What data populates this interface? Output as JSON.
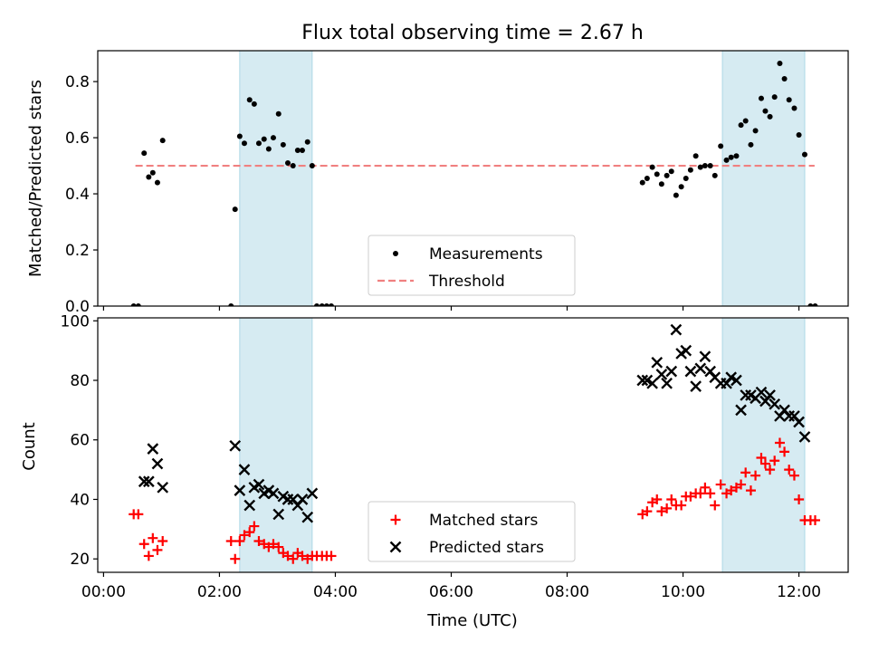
{
  "figure": {
    "title": "Flux total observing time = 2.67 h"
  },
  "chart_data": [
    {
      "type": "scatter",
      "ylabel": "Matched/Predicted stars",
      "xlim": [
        -0.1,
        12.85
      ],
      "ylim": [
        0,
        0.91
      ],
      "yticks": [
        "0.0",
        "0.2",
        "0.4",
        "0.6",
        "0.8"
      ],
      "ytick_values": [
        0,
        0.2,
        0.4,
        0.6,
        0.8
      ],
      "xtick_values": [
        0,
        2,
        4,
        6,
        8,
        10,
        12
      ],
      "shaded_intervals": [
        [
          2.35,
          3.6
        ],
        [
          10.68,
          12.1
        ]
      ],
      "threshold": {
        "x_range": [
          0.55,
          12.27
        ],
        "value": 0.5,
        "color": "#f08080"
      },
      "legend": {
        "position": "lower-center",
        "entries": [
          "Measurements",
          "Threshold"
        ]
      },
      "series": [
        {
          "name": "Measurements",
          "marker": "dot",
          "color": "#000000",
          "points": [
            [
              0.52,
              0.0
            ],
            [
              0.6,
              0.0
            ],
            [
              0.7,
              0.545
            ],
            [
              0.78,
              0.46
            ],
            [
              0.85,
              0.475
            ],
            [
              0.93,
              0.44
            ],
            [
              1.02,
              0.59
            ],
            [
              2.2,
              0.0
            ],
            [
              2.27,
              0.345
            ],
            [
              2.35,
              0.605
            ],
            [
              2.43,
              0.58
            ],
            [
              2.52,
              0.735
            ],
            [
              2.6,
              0.72
            ],
            [
              2.68,
              0.58
            ],
            [
              2.77,
              0.595
            ],
            [
              2.85,
              0.56
            ],
            [
              2.93,
              0.6
            ],
            [
              3.02,
              0.685
            ],
            [
              3.1,
              0.575
            ],
            [
              3.18,
              0.51
            ],
            [
              3.27,
              0.5
            ],
            [
              3.35,
              0.555
            ],
            [
              3.43,
              0.555
            ],
            [
              3.52,
              0.585
            ],
            [
              3.6,
              0.5
            ],
            [
              3.68,
              0.0
            ],
            [
              3.77,
              0.0
            ],
            [
              3.85,
              0.0
            ],
            [
              3.93,
              0.0
            ],
            [
              9.3,
              0.44
            ],
            [
              9.38,
              0.455
            ],
            [
              9.47,
              0.495
            ],
            [
              9.55,
              0.47
            ],
            [
              9.63,
              0.435
            ],
            [
              9.72,
              0.465
            ],
            [
              9.8,
              0.48
            ],
            [
              9.88,
              0.395
            ],
            [
              9.97,
              0.425
            ],
            [
              10.05,
              0.455
            ],
            [
              10.13,
              0.485
            ],
            [
              10.22,
              0.535
            ],
            [
              10.3,
              0.495
            ],
            [
              10.38,
              0.5
            ],
            [
              10.47,
              0.5
            ],
            [
              10.55,
              0.465
            ],
            [
              10.65,
              0.57
            ],
            [
              10.75,
              0.52
            ],
            [
              10.83,
              0.53
            ],
            [
              10.92,
              0.535
            ],
            [
              11.0,
              0.645
            ],
            [
              11.08,
              0.66
            ],
            [
              11.17,
              0.575
            ],
            [
              11.25,
              0.625
            ],
            [
              11.35,
              0.74
            ],
            [
              11.42,
              0.695
            ],
            [
              11.5,
              0.675
            ],
            [
              11.58,
              0.745
            ],
            [
              11.67,
              0.865
            ],
            [
              11.75,
              0.81
            ],
            [
              11.83,
              0.735
            ],
            [
              11.92,
              0.705
            ],
            [
              12.0,
              0.61
            ],
            [
              12.1,
              0.54
            ],
            [
              12.2,
              0.0
            ],
            [
              12.28,
              0.0
            ]
          ]
        }
      ]
    },
    {
      "type": "scatter",
      "xlabel": "Time (UTC)",
      "ylabel": "Count",
      "xlim": [
        -0.1,
        12.85
      ],
      "ylim": [
        15.5,
        101
      ],
      "yticks": [
        "20",
        "40",
        "60",
        "80",
        "100"
      ],
      "ytick_values": [
        20,
        40,
        60,
        80,
        100
      ],
      "xticks": [
        "00:00",
        "02:00",
        "04:00",
        "06:00",
        "08:00",
        "10:00",
        "12:00"
      ],
      "xtick_values": [
        0,
        2,
        4,
        6,
        8,
        10,
        12
      ],
      "shaded_intervals": [
        [
          2.35,
          3.6
        ],
        [
          10.68,
          12.1
        ]
      ],
      "legend": {
        "position": "lower-center",
        "entries": [
          "Matched stars",
          "Predicted stars"
        ]
      },
      "series": [
        {
          "name": "Matched stars",
          "marker": "plus",
          "color": "#ff0000",
          "points": [
            [
              0.52,
              35
            ],
            [
              0.6,
              35
            ],
            [
              0.7,
              25
            ],
            [
              0.78,
              21
            ],
            [
              0.85,
              27
            ],
            [
              0.93,
              23
            ],
            [
              1.02,
              26
            ],
            [
              2.2,
              26
            ],
            [
              2.27,
              20
            ],
            [
              2.35,
              26
            ],
            [
              2.43,
              28
            ],
            [
              2.52,
              29
            ],
            [
              2.6,
              31
            ],
            [
              2.68,
              26
            ],
            [
              2.77,
              25
            ],
            [
              2.85,
              24
            ],
            [
              2.93,
              25
            ],
            [
              3.02,
              24
            ],
            [
              3.1,
              22
            ],
            [
              3.18,
              21
            ],
            [
              3.27,
              20
            ],
            [
              3.35,
              22
            ],
            [
              3.43,
              21
            ],
            [
              3.52,
              20
            ],
            [
              3.6,
              21
            ],
            [
              3.68,
              21
            ],
            [
              3.77,
              21
            ],
            [
              3.85,
              21
            ],
            [
              3.93,
              21
            ],
            [
              9.3,
              35
            ],
            [
              9.38,
              36
            ],
            [
              9.47,
              39
            ],
            [
              9.55,
              40
            ],
            [
              9.63,
              36
            ],
            [
              9.72,
              37
            ],
            [
              9.8,
              40
            ],
            [
              9.88,
              38
            ],
            [
              9.97,
              38
            ],
            [
              10.05,
              41
            ],
            [
              10.13,
              41
            ],
            [
              10.22,
              42
            ],
            [
              10.3,
              42
            ],
            [
              10.38,
              44
            ],
            [
              10.47,
              42
            ],
            [
              10.55,
              38
            ],
            [
              10.65,
              45
            ],
            [
              10.75,
              42
            ],
            [
              10.83,
              43
            ],
            [
              10.92,
              44
            ],
            [
              11.0,
              45
            ],
            [
              11.08,
              49
            ],
            [
              11.17,
              43
            ],
            [
              11.25,
              48
            ],
            [
              11.35,
              54
            ],
            [
              11.42,
              52
            ],
            [
              11.5,
              50
            ],
            [
              11.58,
              53
            ],
            [
              11.67,
              59
            ],
            [
              11.75,
              56
            ],
            [
              11.83,
              50
            ],
            [
              11.92,
              48
            ],
            [
              12.0,
              40
            ],
            [
              12.1,
              33
            ],
            [
              12.2,
              33
            ],
            [
              12.28,
              33
            ]
          ]
        },
        {
          "name": "Predicted stars",
          "marker": "x",
          "color": "#000000",
          "points": [
            [
              0.7,
              46
            ],
            [
              0.78,
              46
            ],
            [
              0.85,
              57
            ],
            [
              0.93,
              52
            ],
            [
              1.02,
              44
            ],
            [
              2.27,
              58
            ],
            [
              2.35,
              43
            ],
            [
              2.43,
              50
            ],
            [
              2.52,
              38
            ],
            [
              2.6,
              44
            ],
            [
              2.68,
              45
            ],
            [
              2.77,
              42
            ],
            [
              2.85,
              43
            ],
            [
              2.93,
              42
            ],
            [
              3.02,
              35
            ],
            [
              3.1,
              41
            ],
            [
              3.18,
              40
            ],
            [
              3.27,
              40
            ],
            [
              3.35,
              38
            ],
            [
              3.43,
              40
            ],
            [
              3.52,
              34
            ],
            [
              3.6,
              42
            ],
            [
              9.3,
              80
            ],
            [
              9.38,
              80
            ],
            [
              9.47,
              79
            ],
            [
              9.55,
              86
            ],
            [
              9.63,
              82
            ],
            [
              9.72,
              79
            ],
            [
              9.8,
              83
            ],
            [
              9.88,
              97
            ],
            [
              9.97,
              89
            ],
            [
              10.05,
              90
            ],
            [
              10.13,
              83
            ],
            [
              10.22,
              78
            ],
            [
              10.3,
              84
            ],
            [
              10.38,
              88
            ],
            [
              10.47,
              83
            ],
            [
              10.55,
              81
            ],
            [
              10.65,
              79
            ],
            [
              10.75,
              79
            ],
            [
              10.83,
              81
            ],
            [
              10.92,
              80
            ],
            [
              11.0,
              70
            ],
            [
              11.08,
              75
            ],
            [
              11.17,
              75
            ],
            [
              11.25,
              74
            ],
            [
              11.35,
              76
            ],
            [
              11.42,
              73
            ],
            [
              11.5,
              75
            ],
            [
              11.58,
              72
            ],
            [
              11.67,
              68
            ],
            [
              11.75,
              70
            ],
            [
              11.83,
              68
            ],
            [
              11.92,
              68
            ],
            [
              12.0,
              66
            ],
            [
              12.1,
              61
            ]
          ]
        }
      ]
    }
  ]
}
